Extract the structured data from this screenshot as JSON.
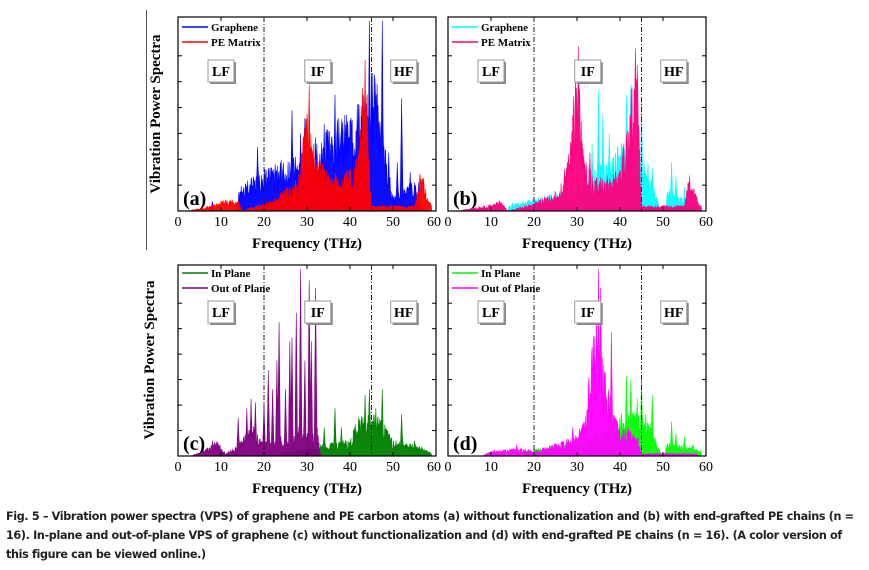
{
  "figure": {
    "caption": "Fig. 5 – Vibration power spectra (VPS) of graphene and PE carbon atoms (a) without functionalization and (b) with end-grafted PE chains (n = 16). In-plane and out-of-plane VPS of graphene (c) without functionalization and (d) with end-grafted PE chains (n = 16). (A color version of this figure can be viewed online.)"
  },
  "chart_data": [
    {
      "panel": "(a)",
      "type": "area",
      "xlabel": "Frequency (THz)",
      "ylabel": "Vibration Power Spectra",
      "xlim": [
        0,
        60
      ],
      "xticks": [
        0,
        10,
        20,
        30,
        40,
        50,
        60
      ],
      "ylim": [
        0,
        1
      ],
      "region_dividers": [
        20,
        45
      ],
      "region_labels": [
        {
          "text": "LF",
          "x": 10
        },
        {
          "text": "IF",
          "x": 32.5
        },
        {
          "text": "HF",
          "x": 52.5
        }
      ],
      "legend": {
        "placement": "top-left"
      },
      "series": [
        {
          "name": "Graphene",
          "color": "#0000ff",
          "peaks": [
            [
              8,
              0.05
            ],
            [
              14.5,
              0.1
            ],
            [
              18.5,
              0.33
            ],
            [
              21,
              0.22
            ],
            [
              24,
              0.18
            ],
            [
              26.5,
              0.52
            ],
            [
              28.5,
              0.4
            ],
            [
              29.5,
              0.48
            ],
            [
              32,
              0.38
            ],
            [
              34,
              0.45
            ],
            [
              36.5,
              0.6
            ],
            [
              38,
              0.42
            ],
            [
              40,
              0.3
            ],
            [
              42,
              0.55
            ],
            [
              43.5,
              0.62
            ],
            [
              44.5,
              0.98
            ],
            [
              46,
              0.5
            ],
            [
              47.5,
              0.98
            ],
            [
              49,
              0.3
            ],
            [
              51,
              0.25
            ],
            [
              52,
              0.58
            ],
            [
              54,
              0.2
            ],
            [
              56,
              0.15
            ]
          ],
          "band": [
            [
              14,
              0.08
            ],
            [
              20,
              0.16
            ],
            [
              30,
              0.22
            ],
            [
              44.5,
              0.45
            ],
            [
              45.5,
              0.6
            ],
            [
              48,
              0.25
            ],
            [
              50,
              0.05
            ],
            [
              54,
              0.1
            ],
            [
              55.5,
              0.12
            ]
          ]
        },
        {
          "name": "PE Matrix",
          "color": "#ff0000",
          "peaks": [
            [
              11,
              0.05
            ],
            [
              13,
              0.04
            ],
            [
              30.5,
              0.65
            ],
            [
              35,
              0.15
            ],
            [
              41,
              0.22
            ],
            [
              43.5,
              0.78
            ],
            [
              44,
              0.6
            ],
            [
              56.5,
              0.16
            ]
          ],
          "band": [
            [
              2,
              0
            ],
            [
              8,
              0.02
            ],
            [
              10,
              0.04
            ],
            [
              14,
              0.04
            ],
            [
              15,
              0
            ],
            [
              18,
              0.02
            ],
            [
              22,
              0.04
            ],
            [
              28,
              0.12
            ],
            [
              30,
              0.4
            ],
            [
              31,
              0.3
            ],
            [
              33,
              0.18
            ],
            [
              38,
              0.12
            ],
            [
              42,
              0.2
            ],
            [
              43.5,
              0.6
            ],
            [
              45,
              0.02
            ],
            [
              55,
              0.02
            ],
            [
              56.5,
              0.15
            ],
            [
              59,
              0.02
            ]
          ]
        }
      ]
    },
    {
      "panel": "(b)",
      "type": "area",
      "xlabel": "Frequency (THz)",
      "ylabel": "",
      "xlim": [
        0,
        60
      ],
      "xticks": [
        0,
        10,
        20,
        30,
        40,
        50,
        60
      ],
      "ylim": [
        0,
        1
      ],
      "region_dividers": [
        20,
        45
      ],
      "region_labels": [
        {
          "text": "LF",
          "x": 10
        },
        {
          "text": "IF",
          "x": 32.5
        },
        {
          "text": "HF",
          "x": 52.5
        }
      ],
      "legend": {
        "placement": "top-left"
      },
      "series": [
        {
          "name": "Graphene",
          "color": "#00ffff",
          "peaks": [
            [
              15,
              0.04
            ],
            [
              20,
              0.07
            ],
            [
              25,
              0.1
            ],
            [
              27,
              0.12
            ],
            [
              33.5,
              0.35
            ],
            [
              35,
              0.62
            ],
            [
              36,
              0.5
            ],
            [
              37.5,
              0.4
            ],
            [
              39,
              0.3
            ],
            [
              41.5,
              0.6
            ],
            [
              42.5,
              0.65
            ],
            [
              45,
              0.58
            ],
            [
              46.5,
              0.25
            ],
            [
              47.5,
              0.22
            ],
            [
              52,
              0.25
            ],
            [
              53,
              0.18
            ],
            [
              55,
              0.12
            ]
          ],
          "band": [
            [
              14,
              0.02
            ],
            [
              20,
              0.05
            ],
            [
              28,
              0.08
            ],
            [
              33,
              0.15
            ],
            [
              38,
              0.2
            ],
            [
              40,
              0.25
            ],
            [
              45,
              0.2
            ],
            [
              48,
              0.08
            ],
            [
              49.5,
              0
            ],
            [
              50.5,
              0
            ],
            [
              51,
              0.08
            ],
            [
              55,
              0.05
            ],
            [
              59,
              0.02
            ]
          ]
        },
        {
          "name": "PE Matrix",
          "color": "#ff0080",
          "peaks": [
            [
              10,
              0.03
            ],
            [
              12,
              0.04
            ],
            [
              30.3,
              0.85
            ],
            [
              33,
              0.3
            ],
            [
              41.5,
              0.4
            ],
            [
              43.8,
              0.68
            ],
            [
              56,
              0.15
            ]
          ],
          "band": [
            [
              2,
              0
            ],
            [
              9,
              0.02
            ],
            [
              12,
              0.04
            ],
            [
              14,
              0
            ],
            [
              20,
              0.03
            ],
            [
              26,
              0.08
            ],
            [
              28.5,
              0.25
            ],
            [
              30,
              0.6
            ],
            [
              31.5,
              0.2
            ],
            [
              34,
              0.12
            ],
            [
              40,
              0.15
            ],
            [
              42,
              0.35
            ],
            [
              43.8,
              0.62
            ],
            [
              45,
              0.02
            ],
            [
              55,
              0.02
            ],
            [
              56,
              0.14
            ],
            [
              59,
              0.01
            ]
          ]
        }
      ]
    },
    {
      "panel": "(c)",
      "type": "area",
      "xlabel": "Frequency (THz)",
      "ylabel": "Vibration Power Spectra",
      "xlim": [
        0,
        60
      ],
      "xticks": [
        0,
        10,
        20,
        30,
        40,
        50,
        60
      ],
      "ylim": [
        0,
        1
      ],
      "region_dividers": [
        20,
        45
      ],
      "region_labels": [
        {
          "text": "LF",
          "x": 10
        },
        {
          "text": "IF",
          "x": 32.5
        },
        {
          "text": "HF",
          "x": 52.5
        }
      ],
      "legend": {
        "placement": "top-left"
      },
      "series": [
        {
          "name": "In Plane",
          "color": "#008000",
          "peaks": [
            [
              34,
              0.15
            ],
            [
              36.5,
              0.25
            ],
            [
              38,
              0.15
            ],
            [
              42,
              0.2
            ],
            [
              43.5,
              0.32
            ],
            [
              44.5,
              0.35
            ],
            [
              46,
              0.25
            ],
            [
              47.5,
              0.35
            ],
            [
              52,
              0.22
            ],
            [
              55,
              0.08
            ]
          ],
          "band": [
            [
              24,
              0.01
            ],
            [
              32,
              0.04
            ],
            [
              40,
              0.06
            ],
            [
              42,
              0.15
            ],
            [
              47,
              0.15
            ],
            [
              50,
              0.06
            ],
            [
              56,
              0.04
            ],
            [
              59,
              0.01
            ]
          ]
        },
        {
          "name": "Out of Plane",
          "color": "#800080",
          "peaks": [
            [
              8,
              0.08
            ],
            [
              9,
              0.07
            ],
            [
              14,
              0.2
            ],
            [
              16,
              0.25
            ],
            [
              17,
              0.3
            ],
            [
              18,
              0.28
            ],
            [
              20,
              0.28
            ],
            [
              21,
              0.45
            ],
            [
              22,
              0.35
            ],
            [
              23,
              0.5
            ],
            [
              23.5,
              0.7
            ],
            [
              25,
              0.35
            ],
            [
              26,
              0.6
            ],
            [
              26.5,
              0.62
            ],
            [
              27.5,
              0.75
            ],
            [
              28.5,
              0.98
            ],
            [
              29.5,
              0.5
            ],
            [
              30.5,
              0.92
            ],
            [
              31,
              0.6
            ],
            [
              32,
              0.88
            ]
          ],
          "band": [
            [
              3,
              0
            ],
            [
              6,
              0.02
            ],
            [
              9,
              0.06
            ],
            [
              11,
              0.01
            ],
            [
              14,
              0.04
            ],
            [
              17,
              0.12
            ],
            [
              20,
              0.06
            ],
            [
              24,
              0.05
            ],
            [
              28,
              0.05
            ],
            [
              32,
              0.03
            ],
            [
              33,
              0
            ]
          ]
        }
      ]
    },
    {
      "panel": "(d)",
      "type": "area",
      "xlabel": "Frequency (THz)",
      "ylabel": "",
      "xlim": [
        0,
        60
      ],
      "xticks": [
        0,
        10,
        20,
        30,
        40,
        50,
        60
      ],
      "ylim": [
        0,
        1
      ],
      "region_dividers": [
        20,
        45
      ],
      "region_labels": [
        {
          "text": "LF",
          "x": 10
        },
        {
          "text": "IF",
          "x": 32.5
        },
        {
          "text": "HF",
          "x": 52.5
        }
      ],
      "legend": {
        "placement": "top-left"
      },
      "series": [
        {
          "name": "In Plane",
          "color": "#00ff00",
          "peaks": [
            [
              20,
              0.05
            ],
            [
              25,
              0.06
            ],
            [
              38,
              0.25
            ],
            [
              40,
              0.2
            ],
            [
              41.5,
              0.42
            ],
            [
              42.5,
              0.4
            ],
            [
              44,
              0.3
            ],
            [
              45,
              0.42
            ],
            [
              46,
              0.22
            ],
            [
              47.5,
              0.32
            ],
            [
              52,
              0.18
            ],
            [
              53,
              0.12
            ],
            [
              55,
              0.1
            ],
            [
              57,
              0.06
            ]
          ],
          "band": [
            [
              18,
              0.02
            ],
            [
              30,
              0.05
            ],
            [
              38,
              0.12
            ],
            [
              42,
              0.18
            ],
            [
              47,
              0.12
            ],
            [
              49,
              0.03
            ],
            [
              50,
              0
            ],
            [
              51,
              0.05
            ],
            [
              56,
              0.04
            ],
            [
              59,
              0.02
            ]
          ]
        },
        {
          "name": "Out of Plane",
          "color": "#ff00ff",
          "peaks": [
            [
              16,
              0.06
            ],
            [
              29,
              0.15
            ],
            [
              32,
              0.12
            ],
            [
              33.5,
              0.5
            ],
            [
              34.5,
              0.75
            ],
            [
              35,
              0.98
            ],
            [
              35.5,
              0.88
            ],
            [
              36.5,
              0.42
            ],
            [
              38,
              0.65
            ],
            [
              39,
              0.2
            ],
            [
              42.5,
              0.12
            ]
          ],
          "band": [
            [
              8,
              0
            ],
            [
              10,
              0.02
            ],
            [
              16,
              0.03
            ],
            [
              20,
              0.02
            ],
            [
              26,
              0.05
            ],
            [
              30,
              0.08
            ],
            [
              32,
              0.15
            ],
            [
              34,
              0.5
            ],
            [
              36,
              0.35
            ],
            [
              38,
              0.2
            ],
            [
              40,
              0.1
            ],
            [
              42,
              0.1
            ],
            [
              44,
              0.08
            ],
            [
              45,
              0.01
            ],
            [
              58,
              0.01
            ]
          ]
        }
      ]
    }
  ]
}
